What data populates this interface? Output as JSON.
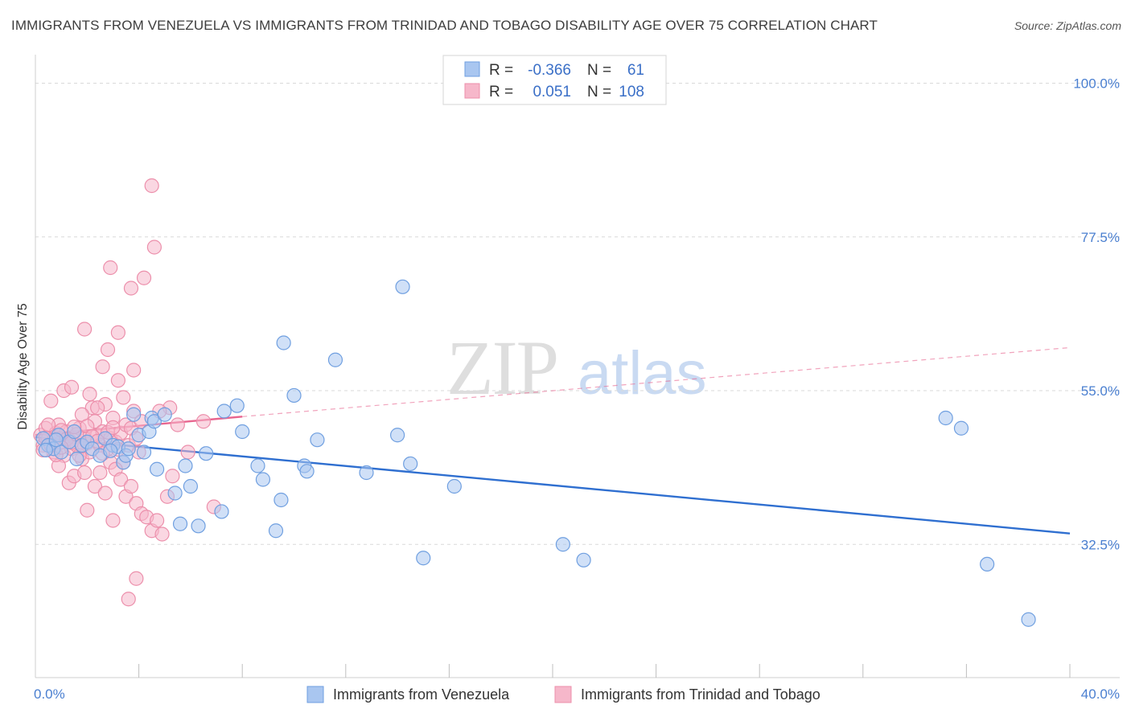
{
  "title": "IMMIGRANTS FROM VENEZUELA VS IMMIGRANTS FROM TRINIDAD AND TOBAGO DISABILITY AGE OVER 75 CORRELATION CHART",
  "source": "Source: ZipAtlas.com",
  "watermark": {
    "zip": "ZIP",
    "atlas": "atlas"
  },
  "colors": {
    "venezuela_fill": "#a9c6f0",
    "venezuela_stroke": "#6f9fe0",
    "venezuela_line": "#2f6fd0",
    "trinidad_fill": "#f6b7ca",
    "trinidad_stroke": "#ec8fab",
    "trinidad_line": "#e8658f",
    "tick_text": "#4a7fd0",
    "grid": "#d9d9d9"
  },
  "legend": {
    "rows": [
      {
        "r_label": "R =",
        "r_value": "-0.366",
        "n_label": "N =",
        "n_value": "61"
      },
      {
        "r_label": "R =",
        "r_value": "0.051",
        "n_label": "N =",
        "n_value": "108"
      }
    ]
  },
  "chart_data": {
    "type": "scatter",
    "title": "IMMIGRANTS FROM VENEZUELA VS IMMIGRANTS FROM TRINIDAD AND TOBAGO DISABILITY AGE OVER 75 CORRELATION CHART",
    "xlabel": "",
    "ylabel": "Disability Age Over 75",
    "xlim": [
      0,
      40
    ],
    "ylim": [
      13,
      103
    ],
    "x_tick_labels": [
      "0.0%",
      "40.0%"
    ],
    "y_ticks": [
      32.5,
      55.0,
      77.5,
      100.0
    ],
    "y_tick_labels": [
      "32.5%",
      "55.0%",
      "77.5%",
      "100.0%"
    ],
    "grid": true,
    "legend_position": "bottom",
    "series": [
      {
        "name": "Immigrants from Venezuela",
        "r": -0.366,
        "n": 61,
        "trend": {
          "x": [
            0,
            40
          ],
          "y": [
            48.2,
            34.1
          ],
          "style": "solid"
        },
        "points": [
          [
            0.3,
            48.0
          ],
          [
            0.5,
            47.0
          ],
          [
            0.7,
            46.5
          ],
          [
            0.9,
            48.5
          ],
          [
            1.0,
            46.0
          ],
          [
            1.3,
            47.5
          ],
          [
            1.5,
            49.0
          ],
          [
            1.6,
            45.0
          ],
          [
            1.8,
            47.0
          ],
          [
            2.0,
            47.5
          ],
          [
            2.2,
            46.5
          ],
          [
            2.5,
            45.5
          ],
          [
            2.7,
            48.0
          ],
          [
            3.0,
            47.0
          ],
          [
            3.2,
            46.8
          ],
          [
            3.4,
            44.5
          ],
          [
            3.5,
            45.5
          ],
          [
            3.6,
            46.5
          ],
          [
            3.8,
            51.5
          ],
          [
            4.0,
            48.5
          ],
          [
            4.2,
            46.0
          ],
          [
            4.4,
            49.0
          ],
          [
            4.5,
            51.0
          ],
          [
            4.6,
            50.5
          ],
          [
            4.7,
            43.5
          ],
          [
            5.0,
            51.5
          ],
          [
            5.4,
            40.0
          ],
          [
            5.6,
            35.5
          ],
          [
            5.8,
            44.0
          ],
          [
            6.0,
            41.0
          ],
          [
            6.3,
            35.2
          ],
          [
            6.6,
            45.8
          ],
          [
            7.2,
            37.3
          ],
          [
            7.3,
            52.0
          ],
          [
            7.8,
            52.8
          ],
          [
            8.0,
            49.0
          ],
          [
            8.6,
            44.0
          ],
          [
            8.8,
            42.0
          ],
          [
            9.3,
            34.5
          ],
          [
            9.5,
            39.0
          ],
          [
            9.6,
            62.0
          ],
          [
            10.0,
            54.3
          ],
          [
            10.4,
            44.0
          ],
          [
            10.5,
            43.2
          ],
          [
            10.9,
            47.8
          ],
          [
            11.6,
            59.5
          ],
          [
            12.8,
            43.0
          ],
          [
            14.0,
            48.5
          ],
          [
            14.2,
            70.2
          ],
          [
            14.5,
            44.3
          ],
          [
            15.0,
            30.5
          ],
          [
            16.2,
            41.0
          ],
          [
            20.4,
            32.5
          ],
          [
            21.2,
            30.2
          ],
          [
            35.2,
            51.0
          ],
          [
            35.8,
            49.5
          ],
          [
            36.8,
            29.6
          ],
          [
            38.4,
            21.5
          ],
          [
            0.4,
            46.3
          ],
          [
            0.8,
            47.8
          ],
          [
            2.9,
            46.2
          ]
        ]
      },
      {
        "name": "Immigrants from Trinidad and Tobago",
        "r": 0.051,
        "n": 108,
        "trend": {
          "x": [
            0,
            8
          ],
          "y": [
            48.5,
            51.2
          ],
          "style": "solid",
          "extended": {
            "x": [
              8,
              40
            ],
            "y": [
              51.2,
              61.3
            ],
            "style": "dashed"
          }
        },
        "points": [
          [
            0.2,
            48.5
          ],
          [
            0.3,
            47.0
          ],
          [
            0.4,
            49.5
          ],
          [
            0.5,
            48.0
          ],
          [
            0.6,
            47.2
          ],
          [
            0.7,
            46.0
          ],
          [
            0.8,
            48.8
          ],
          [
            0.9,
            50.0
          ],
          [
            1.0,
            47.5
          ],
          [
            1.1,
            45.5
          ],
          [
            1.2,
            49.0
          ],
          [
            1.3,
            47.8
          ],
          [
            1.4,
            46.5
          ],
          [
            1.5,
            48.2
          ],
          [
            1.6,
            47.0
          ],
          [
            1.7,
            49.5
          ],
          [
            1.8,
            45.0
          ],
          [
            1.9,
            48.0
          ],
          [
            2.0,
            47.3
          ],
          [
            2.1,
            46.0
          ],
          [
            2.2,
            52.5
          ],
          [
            2.3,
            50.5
          ],
          [
            2.4,
            48.5
          ],
          [
            2.5,
            47.0
          ],
          [
            2.6,
            49.0
          ],
          [
            2.7,
            53.0
          ],
          [
            2.8,
            46.5
          ],
          [
            2.9,
            48.0
          ],
          [
            3.0,
            51.0
          ],
          [
            3.1,
            47.5
          ],
          [
            3.2,
            56.5
          ],
          [
            3.3,
            48.8
          ],
          [
            3.4,
            44.5
          ],
          [
            3.5,
            50.0
          ],
          [
            3.6,
            47.0
          ],
          [
            3.7,
            49.5
          ],
          [
            3.8,
            52.0
          ],
          [
            3.9,
            48.0
          ],
          [
            4.0,
            46.0
          ],
          [
            4.1,
            50.5
          ],
          [
            0.6,
            53.5
          ],
          [
            0.9,
            44.0
          ],
          [
            1.1,
            55.0
          ],
          [
            1.3,
            41.5
          ],
          [
            1.5,
            42.5
          ],
          [
            1.7,
            45.5
          ],
          [
            1.9,
            43.0
          ],
          [
            2.1,
            54.5
          ],
          [
            2.3,
            41.0
          ],
          [
            2.5,
            43.0
          ],
          [
            2.7,
            40.0
          ],
          [
            2.9,
            44.5
          ],
          [
            3.1,
            43.5
          ],
          [
            3.3,
            42.0
          ],
          [
            3.5,
            39.5
          ],
          [
            3.7,
            41.0
          ],
          [
            3.9,
            38.5
          ],
          [
            4.1,
            37.0
          ],
          [
            4.3,
            36.5
          ],
          [
            4.5,
            34.5
          ],
          [
            4.7,
            36.0
          ],
          [
            4.9,
            34.0
          ],
          [
            2.0,
            37.5
          ],
          [
            3.0,
            36.0
          ],
          [
            3.6,
            24.5
          ],
          [
            3.9,
            27.5
          ],
          [
            4.6,
            76.0
          ],
          [
            4.5,
            85.0
          ],
          [
            2.9,
            73.0
          ],
          [
            4.2,
            71.5
          ],
          [
            3.7,
            70.0
          ],
          [
            1.9,
            64.0
          ],
          [
            2.8,
            61.0
          ],
          [
            3.2,
            63.5
          ],
          [
            2.6,
            58.5
          ],
          [
            3.8,
            58.0
          ],
          [
            3.4,
            54.0
          ],
          [
            1.4,
            55.5
          ],
          [
            1.8,
            51.5
          ],
          [
            2.4,
            52.5
          ],
          [
            5.2,
            52.5
          ],
          [
            5.5,
            50.0
          ],
          [
            5.9,
            46.0
          ],
          [
            6.5,
            50.5
          ],
          [
            6.9,
            38.0
          ],
          [
            5.1,
            39.5
          ],
          [
            4.8,
            52.0
          ],
          [
            0.3,
            46.3
          ],
          [
            0.5,
            50.0
          ],
          [
            0.7,
            47.7
          ],
          [
            0.8,
            45.6
          ],
          [
            1.0,
            49.2
          ],
          [
            1.2,
            47.9
          ],
          [
            1.4,
            47.4
          ],
          [
            1.6,
            48.6
          ],
          [
            1.8,
            46.9
          ],
          [
            2.0,
            49.8
          ],
          [
            2.2,
            48.3
          ],
          [
            2.4,
            47.6
          ],
          [
            2.6,
            45.8
          ],
          [
            2.8,
            48.9
          ],
          [
            3.0,
            49.6
          ],
          [
            3.2,
            46.4
          ],
          [
            0.4,
            48.1
          ],
          [
            0.6,
            47.0
          ],
          [
            1.0,
            46.7
          ],
          [
            1.5,
            49.7
          ],
          [
            5.3,
            42.5
          ]
        ]
      }
    ]
  },
  "bottom_legend": [
    {
      "label": "Immigrants from Venezuela"
    },
    {
      "label": "Immigrants from Trinidad and Tobago"
    }
  ]
}
